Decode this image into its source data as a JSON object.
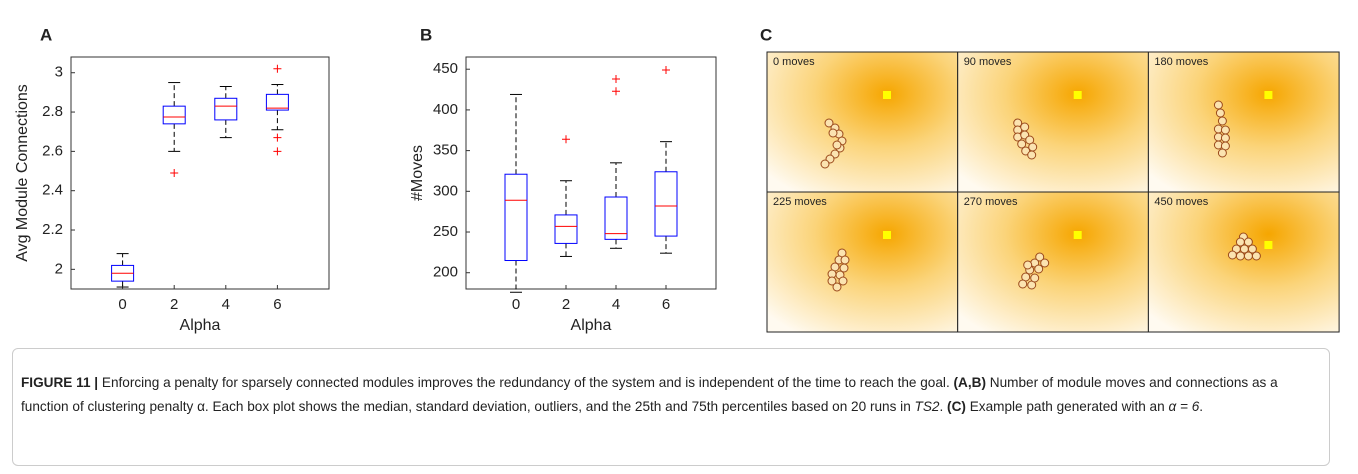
{
  "chart_data": [
    {
      "type": "box",
      "panel_label": "A",
      "y_label": "Avg Module Connections",
      "x_label": "Alpha",
      "categories": [
        "0",
        "2",
        "4",
        "6"
      ],
      "box_color": "#0000ff",
      "median_color": "#ff0000",
      "outlier_color": "#ff0000",
      "boxes": [
        {
          "low": 1.91,
          "q1": 1.94,
          "median": 1.98,
          "q3": 2.02,
          "high": 2.08,
          "outliers": []
        },
        {
          "low": 2.6,
          "q1": 2.74,
          "median": 2.775,
          "q3": 2.83,
          "high": 2.95,
          "outliers": [
            2.49
          ]
        },
        {
          "low": 2.67,
          "q1": 2.76,
          "median": 2.83,
          "q3": 2.87,
          "high": 2.93,
          "outliers": []
        },
        {
          "low": 2.71,
          "q1": 2.81,
          "median": 2.82,
          "q3": 2.89,
          "high": 2.94,
          "outliers": [
            3.02,
            2.67,
            2.6
          ]
        }
      ],
      "ylim": [
        1.9,
        3.08
      ],
      "yticks": [
        2,
        2.2,
        2.4,
        2.6,
        2.8,
        3
      ]
    },
    {
      "type": "box",
      "panel_label": "B",
      "y_label": "#Moves",
      "x_label": "Alpha",
      "categories": [
        "0",
        "2",
        "4",
        "6"
      ],
      "box_color": "#0000ff",
      "median_color": "#ff0000",
      "outlier_color": "#ff0000",
      "boxes": [
        {
          "low": 176,
          "q1": 215,
          "median": 289,
          "q3": 321,
          "high": 419,
          "outliers": []
        },
        {
          "low": 220,
          "q1": 236,
          "median": 257,
          "q3": 271,
          "high": 313,
          "outliers": [
            364
          ]
        },
        {
          "low": 230,
          "q1": 241,
          "median": 248,
          "q3": 293,
          "high": 335,
          "outliers": [
            438,
            423
          ]
        },
        {
          "low": 224,
          "q1": 245,
          "median": 282,
          "q3": 324,
          "high": 361,
          "outliers": [
            449
          ]
        }
      ],
      "ylim": [
        180,
        465
      ],
      "yticks": [
        200,
        250,
        300,
        350,
        400,
        450
      ]
    }
  ],
  "panel_c": {
    "label": "C",
    "frames": [
      "0 moves",
      "90 moves",
      "180 moves",
      "225 moves",
      "270 moves",
      "450 moves"
    ]
  },
  "caption": {
    "label": "FIGURE 11 |",
    "text1": "Enforcing a penalty for sparsely connected modules improves the redundancy of the system and is independent of the time to reach the goal.",
    "ref1": "(A,B)",
    "text2": "Number of module moves and connections as a function of clustering penalty α. Each box plot shows the median, standard deviation, outliers, and the 25th and 75th percentiles based on 20 runs in",
    "ital": "TS2",
    "text3": ".",
    "ref2": "(C)",
    "text4": "Example path generated with an",
    "math": "α = 6",
    "text5": "."
  }
}
